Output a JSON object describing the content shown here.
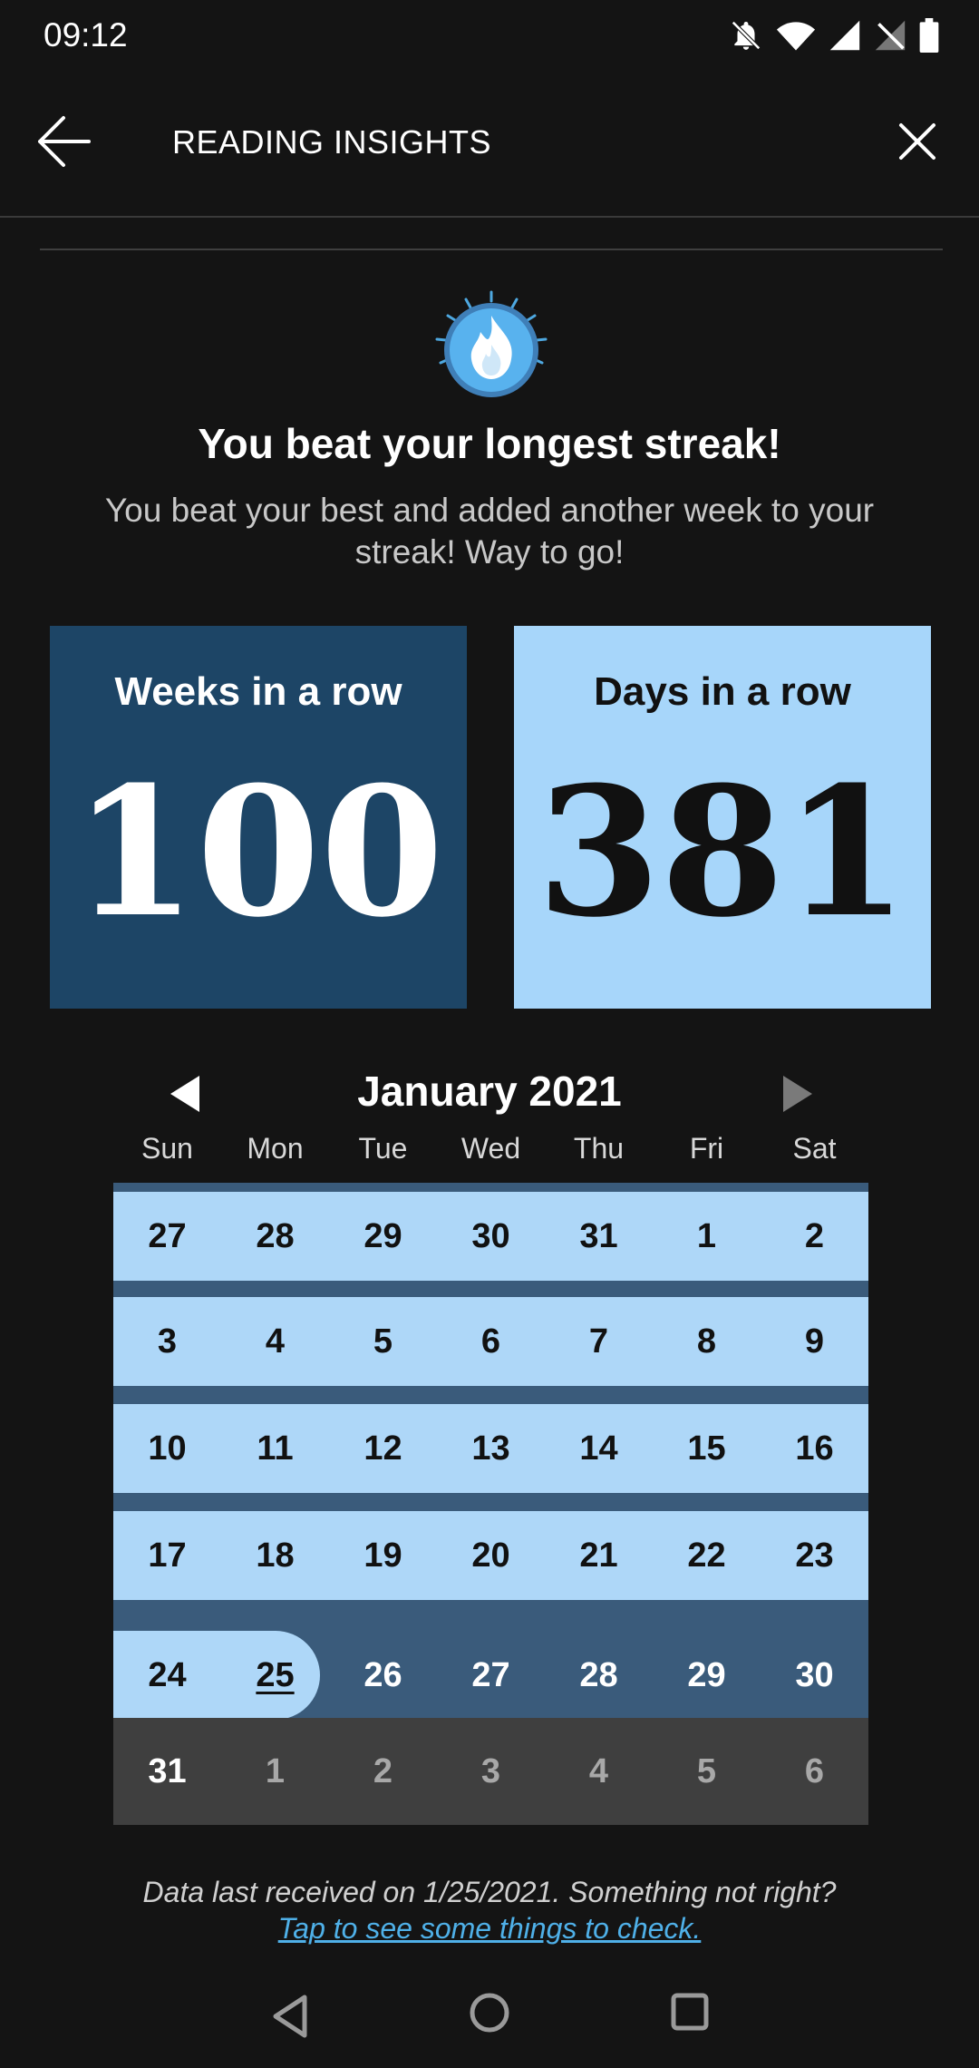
{
  "status_bar": {
    "time": "09:12",
    "icons": [
      "notifications-off-icon",
      "wifi-icon",
      "signal-icon",
      "no-sim-icon",
      "battery-icon"
    ]
  },
  "app_bar": {
    "title": "READING INSIGHTS",
    "back_icon": "arrow-left-icon",
    "close_icon": "close-icon"
  },
  "streak": {
    "icon": "flame-badge-icon",
    "headline": "You beat your longest streak!",
    "message": "You beat your best and added another week to your streak! Way to go!"
  },
  "stats": {
    "weeks_label": "Weeks in a row",
    "weeks_value": "100",
    "days_label": "Days in a row",
    "days_value": "381"
  },
  "calendar": {
    "month_title": "January 2021",
    "weekdays": [
      "Sun",
      "Mon",
      "Tue",
      "Wed",
      "Thu",
      "Fri",
      "Sat"
    ],
    "weeks": [
      [
        "27",
        "28",
        "29",
        "30",
        "31",
        "1",
        "2"
      ],
      [
        "3",
        "4",
        "5",
        "6",
        "7",
        "8",
        "9"
      ],
      [
        "10",
        "11",
        "12",
        "13",
        "14",
        "15",
        "16"
      ],
      [
        "17",
        "18",
        "19",
        "20",
        "21",
        "22",
        "23"
      ],
      [
        "24",
        "25",
        "26",
        "27",
        "28",
        "29",
        "30"
      ],
      [
        "31",
        "1",
        "2",
        "3",
        "4",
        "5",
        "6"
      ]
    ],
    "today": "25",
    "colors": {
      "reading_day": "#aed7f8",
      "streak_week": "#3a5b7b",
      "other_month": "#3f3f3f"
    }
  },
  "footer": {
    "note": "Data last received on 1/25/2021. Something not right?",
    "link": "Tap to see some things to check."
  },
  "colors": {
    "background": "#141414",
    "weeks_card": "#1d4566",
    "days_card": "#a7d6fa",
    "link": "#4fb0e8"
  }
}
